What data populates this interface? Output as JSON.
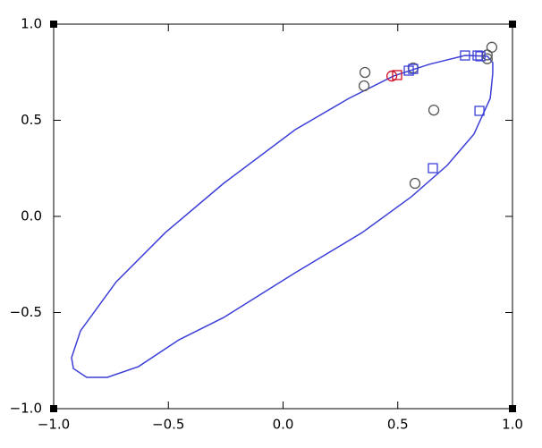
{
  "chart_data": {
    "type": "scatter",
    "xlim": [
      -1,
      1
    ],
    "ylim": [
      -1,
      1
    ],
    "xticks": [
      {
        "value": -1,
        "label": "−1.0"
      },
      {
        "value": -0.5,
        "label": "−0.5"
      },
      {
        "value": 0,
        "label": "0.0"
      },
      {
        "value": 0.5,
        "label": "0.5"
      },
      {
        "value": 1,
        "label": "1.0"
      }
    ],
    "yticks": [
      {
        "value": -1,
        "label": "−1.0"
      },
      {
        "value": -0.5,
        "label": "−0.5"
      },
      {
        "value": 0,
        "label": "0.0"
      },
      {
        "value": 0.5,
        "label": "0.5"
      },
      {
        "value": 1,
        "label": "1.0"
      }
    ],
    "series": [
      {
        "marker": "line",
        "color": "#3b3fd6",
        "x": [
          0.914,
          0.903,
          0.832,
          0.715,
          0.559,
          0.345,
          0.053,
          -0.259,
          -0.454,
          -0.63,
          -0.766,
          -0.856,
          -0.914,
          -0.922,
          -0.883,
          -0.727,
          -0.513,
          -0.259,
          0.053,
          0.287,
          0.481,
          0.637,
          0.793,
          0.891,
          0.914,
          0.914
        ],
        "values": [
          0.744,
          0.614,
          0.428,
          0.265,
          0.102,
          -0.084,
          -0.293,
          -0.526,
          -0.642,
          -0.781,
          -0.837,
          -0.837,
          -0.791,
          -0.735,
          -0.595,
          -0.34,
          -0.084,
          0.172,
          0.451,
          0.614,
          0.73,
          0.791,
          0.837,
          0.833,
          0.8,
          0.744
        ]
      },
      {
        "marker": "circle",
        "color": "#555555",
        "x": [
          0.357,
          0.353,
          0.657,
          0.575,
          0.89,
          0.91,
          0.89,
          0.567
        ],
        "values": [
          0.749,
          0.679,
          0.553,
          0.172,
          0.84,
          0.88,
          0.82,
          0.772
        ]
      },
      {
        "marker": "square",
        "color": "#3b3fd6",
        "x": [
          0.548,
          0.567,
          0.793,
          0.848,
          0.86,
          0.856,
          0.653
        ],
        "values": [
          0.758,
          0.767,
          0.837,
          0.837,
          0.833,
          0.549,
          0.251
        ]
      },
      {
        "marker": "circle",
        "color": "#d0102a",
        "x": [
          0.474
        ],
        "values": [
          0.73
        ]
      },
      {
        "marker": "square",
        "color": "#d0102a",
        "x": [
          0.497
        ],
        "values": [
          0.735
        ]
      }
    ]
  }
}
